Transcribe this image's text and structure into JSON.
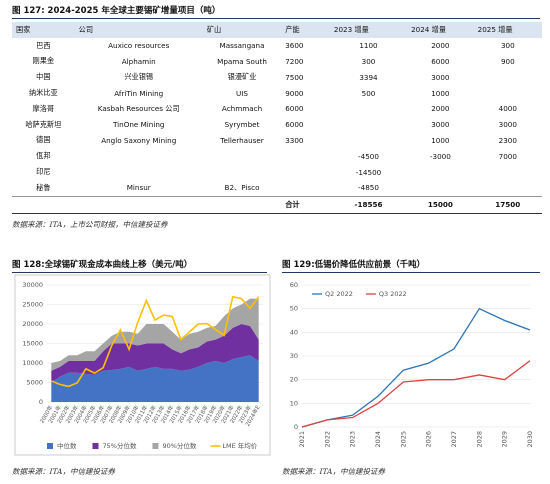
{
  "table_section": {
    "title": "图 127: 2024-2025 年全球主要锡矿增量项目（吨）",
    "columns": [
      "国家",
      "公司",
      "矿山",
      "产能",
      "2023 增量",
      "2024 增量",
      "2025 增量"
    ],
    "rows": [
      [
        "巴西",
        "Auxico resources",
        "Massangana",
        3600,
        1100,
        2000,
        300
      ],
      [
        "刚果金",
        "Alphamin",
        "Mpama South",
        7200,
        300,
        6000,
        900
      ],
      [
        "中国",
        "兴业银锡",
        "银漫矿业",
        7500,
        3394,
        3000,
        null
      ],
      [
        "纳米比亚",
        "AfriTin Mining",
        "UIS",
        9000,
        500,
        1000,
        null
      ],
      [
        "摩洛哥",
        "Kasbah Resources 公司",
        "Achmmach",
        6000,
        null,
        2000,
        4000
      ],
      [
        "哈萨克斯坦",
        "TinOne Mining",
        "Syrymbet",
        6000,
        null,
        3000,
        3000
      ],
      [
        "德国",
        "Anglo Saxony Mining",
        "Tellerhauser",
        3300,
        null,
        1000,
        2300
      ],
      [
        "佤邦",
        null,
        null,
        null,
        -4500,
        -3000,
        7000
      ],
      [
        "印尼",
        null,
        null,
        null,
        -14500,
        null,
        null
      ],
      [
        "秘鲁",
        "Minsur",
        "B2、Pisco",
        null,
        -4850,
        null,
        null
      ]
    ],
    "total": {
      "label": "合计",
      "values": [
        -18556,
        15000,
        17500
      ]
    },
    "source": "数据来源：ITA，上市公司财报，中信建投证券"
  },
  "chart_data": [
    {
      "type": "stacked_area",
      "title": "图 128:全球锡矿现金成本曲线上移（美元/吨）",
      "categories": [
        "2000年",
        "2001年",
        "2002年",
        "2003年",
        "2004年",
        "2005年",
        "2006年",
        "2007年",
        "2008年",
        "2009年",
        "2010年",
        "2011年",
        "2012年",
        "2013年",
        "2014年",
        "2015年",
        "2016年",
        "2017年",
        "2018年",
        "2019年",
        "2020年",
        "2021年",
        "2022年",
        "2023年",
        "2024年E"
      ],
      "series": [
        {
          "name": "中位数",
          "color": "#4472c4",
          "values": [
            5000,
            6500,
            7500,
            7500,
            7200,
            7000,
            8000,
            8200,
            8500,
            9000,
            8000,
            8500,
            9000,
            8500,
            8500,
            8000,
            8300,
            9000,
            10000,
            10500,
            10000,
            11000,
            11500,
            12000,
            10500
          ]
        },
        {
          "name": "75%分位数",
          "color": "#7030a0",
          "values": [
            3000,
            2500,
            3000,
            3000,
            3300,
            3500,
            5000,
            6800,
            6500,
            6000,
            6500,
            6500,
            6000,
            6500,
            5000,
            4500,
            5200,
            5000,
            5500,
            5500,
            7000,
            8000,
            8500,
            7500,
            5500
          ]
        },
        {
          "name": "90%分位数",
          "color": "#a5a5a5",
          "values": [
            2000,
            1500,
            1500,
            1500,
            2500,
            2500,
            2000,
            2000,
            3000,
            3000,
            3000,
            5000,
            5000,
            5000,
            4500,
            3500,
            4000,
            4000,
            3500,
            3500,
            5000,
            5000,
            5000,
            7000,
            10500
          ]
        }
      ],
      "line": {
        "name": "LME 年均价",
        "color": "#ffc000",
        "values": [
          5400,
          4500,
          4000,
          4900,
          8500,
          7400,
          8800,
          14500,
          18500,
          13500,
          20400,
          26000,
          21000,
          22300,
          21900,
          16000,
          18000,
          20000,
          20100,
          18600,
          17100,
          27000,
          26500,
          24000,
          27000
        ]
      },
      "ylim": [
        0,
        30000
      ],
      "yticks": [
        0,
        5000,
        10000,
        15000,
        20000,
        25000,
        30000
      ],
      "source": "数据来源：ITA，中信建投证券"
    },
    {
      "type": "line",
      "title": "图 129:低锡价降低供应前景（千吨）",
      "x": [
        2021,
        2022,
        2023,
        2024,
        2025,
        2026,
        2027,
        2028,
        2029,
        2030
      ],
      "series": [
        {
          "name": "Q2 2022",
          "color": "#2e75b6",
          "values": [
            0,
            3,
            5,
            13,
            24,
            27,
            33,
            50,
            45,
            41
          ]
        },
        {
          "name": "Q3 2022",
          "color": "#e04040",
          "values": [
            0,
            3,
            4,
            10,
            19,
            20,
            20,
            22,
            20,
            28
          ]
        }
      ],
      "xlim": [
        2021,
        2030
      ],
      "xticks": [
        2021,
        2022,
        2023,
        2024,
        2025,
        2026,
        2027,
        2028,
        2029,
        2030
      ],
      "ylim": [
        0,
        60
      ],
      "yticks": [
        0,
        10,
        20,
        30,
        40,
        50,
        60
      ],
      "source": "数据来源：ITA，中信建投证券"
    }
  ]
}
